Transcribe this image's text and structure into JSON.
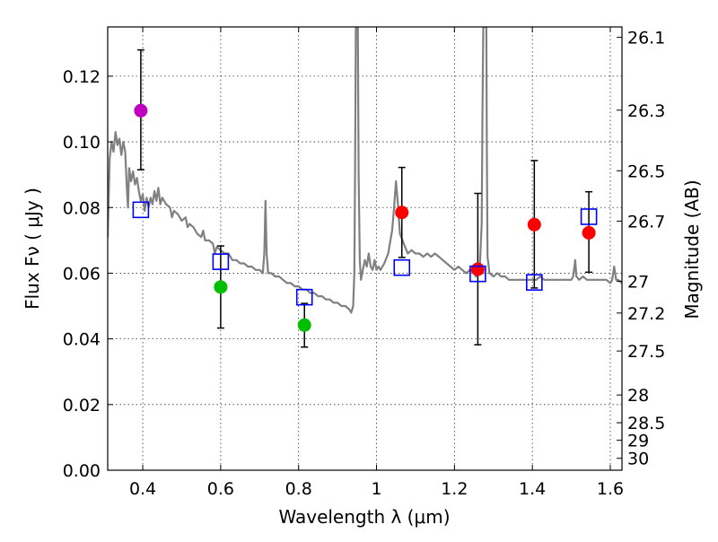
{
  "chart_data": {
    "type": "scatter",
    "xlabel": "Wavelength  λ (μm)",
    "ylabel": "Flux  Fν  ( μJy )",
    "y2label": "Magnitude (AB)",
    "xlim": [
      0.31,
      1.63
    ],
    "ylim": [
      0.0,
      0.135
    ],
    "grid": true,
    "x_ticks": [
      "0.4",
      "0.6",
      "0.8",
      "1",
      "1.2",
      "1.4",
      "1.6"
    ],
    "x_tick_values": [
      0.4,
      0.6,
      0.8,
      1.0,
      1.2,
      1.4,
      1.6
    ],
    "y_ticks": [
      "0.00",
      "0.02",
      "0.04",
      "0.06",
      "0.08",
      "0.10",
      "0.12"
    ],
    "y_tick_values": [
      0.0,
      0.02,
      0.04,
      0.06,
      0.08,
      0.1,
      0.12
    ],
    "mag_ticks": [
      "26.1",
      "26.3",
      "26.5",
      "26.7",
      "27",
      "27.2",
      "27.5",
      "28",
      "28.5",
      "29",
      "30"
    ],
    "mag_tick_values": [
      26.1,
      26.3,
      26.5,
      26.7,
      27.0,
      27.2,
      27.5,
      28.0,
      28.5,
      29.0,
      30.0
    ],
    "colors": {
      "model": "#808080",
      "magenta": "#bf00bf",
      "green": "#00bf00",
      "red": "#ff0000",
      "square": "#0000ff",
      "errorbar": "#000000"
    },
    "model_spectrum": [
      [
        0.31,
        0.071
      ],
      [
        0.315,
        0.095
      ],
      [
        0.32,
        0.1
      ],
      [
        0.325,
        0.097
      ],
      [
        0.33,
        0.103
      ],
      [
        0.335,
        0.099
      ],
      [
        0.34,
        0.101
      ],
      [
        0.345,
        0.096
      ],
      [
        0.35,
        0.1
      ],
      [
        0.355,
        0.097
      ],
      [
        0.36,
        0.084
      ],
      [
        0.362,
        0.08
      ],
      [
        0.365,
        0.092
      ],
      [
        0.37,
        0.088
      ],
      [
        0.375,
        0.091
      ],
      [
        0.38,
        0.087
      ],
      [
        0.385,
        0.089
      ],
      [
        0.39,
        0.085
      ],
      [
        0.395,
        0.082
      ],
      [
        0.4,
        0.084
      ],
      [
        0.405,
        0.079
      ],
      [
        0.41,
        0.083
      ],
      [
        0.415,
        0.08
      ],
      [
        0.42,
        0.083
      ],
      [
        0.425,
        0.081
      ],
      [
        0.43,
        0.085
      ],
      [
        0.435,
        0.082
      ],
      [
        0.44,
        0.086
      ],
      [
        0.445,
        0.081
      ],
      [
        0.45,
        0.083
      ],
      [
        0.46,
        0.081
      ],
      [
        0.47,
        0.08
      ],
      [
        0.475,
        0.077
      ],
      [
        0.48,
        0.079
      ],
      [
        0.49,
        0.078
      ],
      [
        0.5,
        0.076
      ],
      [
        0.51,
        0.077
      ],
      [
        0.515,
        0.074
      ],
      [
        0.52,
        0.075
      ],
      [
        0.53,
        0.074
      ],
      [
        0.54,
        0.072
      ],
      [
        0.55,
        0.071
      ],
      [
        0.555,
        0.073
      ],
      [
        0.56,
        0.07
      ],
      [
        0.57,
        0.07
      ],
      [
        0.58,
        0.069
      ],
      [
        0.585,
        0.066
      ],
      [
        0.59,
        0.068
      ],
      [
        0.6,
        0.067
      ],
      [
        0.61,
        0.066
      ],
      [
        0.62,
        0.066
      ],
      [
        0.63,
        0.064
      ],
      [
        0.64,
        0.064
      ],
      [
        0.65,
        0.063
      ],
      [
        0.66,
        0.063
      ],
      [
        0.67,
        0.062
      ],
      [
        0.68,
        0.062
      ],
      [
        0.69,
        0.061
      ],
      [
        0.7,
        0.061
      ],
      [
        0.708,
        0.06
      ],
      [
        0.712,
        0.066
      ],
      [
        0.715,
        0.082
      ],
      [
        0.718,
        0.066
      ],
      [
        0.722,
        0.06
      ],
      [
        0.73,
        0.06
      ],
      [
        0.74,
        0.059
      ],
      [
        0.75,
        0.059
      ],
      [
        0.76,
        0.058
      ],
      [
        0.77,
        0.057
      ],
      [
        0.78,
        0.057
      ],
      [
        0.79,
        0.056
      ],
      [
        0.8,
        0.056
      ],
      [
        0.81,
        0.055
      ],
      [
        0.82,
        0.055
      ],
      [
        0.83,
        0.054
      ],
      [
        0.84,
        0.054
      ],
      [
        0.85,
        0.053
      ],
      [
        0.86,
        0.053
      ],
      [
        0.87,
        0.052
      ],
      [
        0.88,
        0.052
      ],
      [
        0.89,
        0.051
      ],
      [
        0.9,
        0.051
      ],
      [
        0.91,
        0.05
      ],
      [
        0.92,
        0.05
      ],
      [
        0.93,
        0.049
      ],
      [
        0.935,
        0.048
      ],
      [
        0.94,
        0.05
      ],
      [
        0.943,
        0.06
      ],
      [
        0.945,
        0.09
      ],
      [
        0.947,
        0.135
      ],
      [
        0.952,
        0.135
      ],
      [
        0.954,
        0.09
      ],
      [
        0.957,
        0.064
      ],
      [
        0.96,
        0.058
      ],
      [
        0.965,
        0.061
      ],
      [
        0.97,
        0.064
      ],
      [
        0.975,
        0.062
      ],
      [
        0.98,
        0.066
      ],
      [
        0.985,
        0.062
      ],
      [
        0.99,
        0.061
      ],
      [
        0.995,
        0.064
      ],
      [
        1.0,
        0.061
      ],
      [
        1.005,
        0.062
      ],
      [
        1.01,
        0.061
      ],
      [
        1.02,
        0.063
      ],
      [
        1.03,
        0.066
      ],
      [
        1.04,
        0.073
      ],
      [
        1.045,
        0.08
      ],
      [
        1.05,
        0.088
      ],
      [
        1.055,
        0.081
      ],
      [
        1.06,
        0.072
      ],
      [
        1.07,
        0.069
      ],
      [
        1.08,
        0.066
      ],
      [
        1.09,
        0.067
      ],
      [
        1.1,
        0.066
      ],
      [
        1.11,
        0.066
      ],
      [
        1.12,
        0.065
      ],
      [
        1.13,
        0.066
      ],
      [
        1.14,
        0.065
      ],
      [
        1.15,
        0.066
      ],
      [
        1.16,
        0.065
      ],
      [
        1.17,
        0.064
      ],
      [
        1.18,
        0.063
      ],
      [
        1.19,
        0.062
      ],
      [
        1.2,
        0.061
      ],
      [
        1.21,
        0.062
      ],
      [
        1.22,
        0.061
      ],
      [
        1.23,
        0.06
      ],
      [
        1.24,
        0.061
      ],
      [
        1.25,
        0.06
      ],
      [
        1.255,
        0.059
      ],
      [
        1.26,
        0.06
      ],
      [
        1.265,
        0.062
      ],
      [
        1.27,
        0.075
      ],
      [
        1.272,
        0.11
      ],
      [
        1.274,
        0.135
      ],
      [
        1.282,
        0.135
      ],
      [
        1.283,
        0.1
      ],
      [
        1.285,
        0.065
      ],
      [
        1.29,
        0.06
      ],
      [
        1.3,
        0.059
      ],
      [
        1.31,
        0.06
      ],
      [
        1.32,
        0.059
      ],
      [
        1.33,
        0.059
      ],
      [
        1.34,
        0.058
      ],
      [
        1.35,
        0.058
      ],
      [
        1.36,
        0.058
      ],
      [
        1.37,
        0.058
      ],
      [
        1.38,
        0.058
      ],
      [
        1.39,
        0.058
      ],
      [
        1.4,
        0.058
      ],
      [
        1.41,
        0.058
      ],
      [
        1.42,
        0.059
      ],
      [
        1.43,
        0.058
      ],
      [
        1.44,
        0.058
      ],
      [
        1.45,
        0.058
      ],
      [
        1.46,
        0.058
      ],
      [
        1.47,
        0.058
      ],
      [
        1.48,
        0.058
      ],
      [
        1.49,
        0.058
      ],
      [
        1.5,
        0.058
      ],
      [
        1.505,
        0.059
      ],
      [
        1.51,
        0.064
      ],
      [
        1.513,
        0.059
      ],
      [
        1.52,
        0.058
      ],
      [
        1.53,
        0.059
      ],
      [
        1.54,
        0.058
      ],
      [
        1.55,
        0.058
      ],
      [
        1.56,
        0.058
      ],
      [
        1.57,
        0.058
      ],
      [
        1.58,
        0.058
      ],
      [
        1.59,
        0.058
      ],
      [
        1.6,
        0.057
      ],
      [
        1.605,
        0.058
      ],
      [
        1.61,
        0.062
      ],
      [
        1.615,
        0.058
      ],
      [
        1.62,
        0.058
      ],
      [
        1.63,
        0.057
      ]
    ],
    "observed_points": [
      {
        "x": 0.395,
        "y": 0.1095,
        "err_low": 0.0915,
        "err_high": 0.128,
        "color": "magenta"
      },
      {
        "x": 0.6,
        "y": 0.0558,
        "err_low": 0.0433,
        "err_high": 0.0683,
        "color": "green"
      },
      {
        "x": 0.815,
        "y": 0.0442,
        "err_low": 0.0375,
        "err_high": 0.0508,
        "color": "green"
      },
      {
        "x": 1.065,
        "y": 0.0785,
        "err_low": 0.0648,
        "err_high": 0.0922,
        "color": "red"
      },
      {
        "x": 1.26,
        "y": 0.0612,
        "err_low": 0.0382,
        "err_high": 0.0843,
        "color": "red"
      },
      {
        "x": 1.405,
        "y": 0.0748,
        "err_low": 0.0555,
        "err_high": 0.0943,
        "color": "red"
      },
      {
        "x": 1.545,
        "y": 0.0723,
        "err_low": 0.0603,
        "err_high": 0.0848,
        "color": "red"
      }
    ],
    "model_points": [
      {
        "x": 0.395,
        "y": 0.0793
      },
      {
        "x": 0.6,
        "y": 0.0635
      },
      {
        "x": 0.815,
        "y": 0.0527
      },
      {
        "x": 1.065,
        "y": 0.0617
      },
      {
        "x": 1.26,
        "y": 0.0598
      },
      {
        "x": 1.405,
        "y": 0.0572
      },
      {
        "x": 1.545,
        "y": 0.0772
      }
    ]
  }
}
